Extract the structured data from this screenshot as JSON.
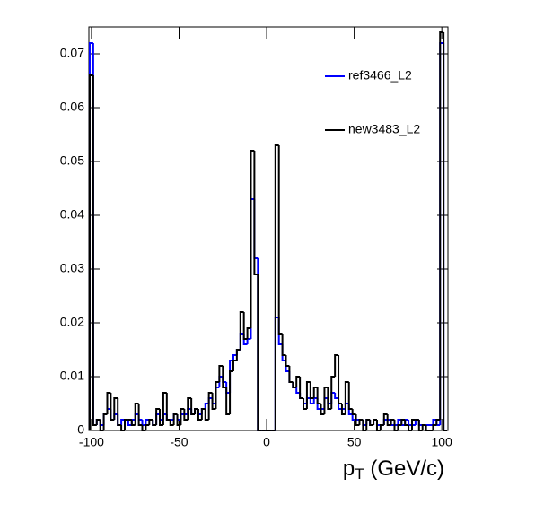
{
  "chart_data": {
    "type": "histogram",
    "x_label": {
      "base": "p",
      "subscript": "T",
      "rest": " (GeV/c)"
    },
    "bins": [
      -101,
      -99,
      -97,
      -95,
      -93,
      -91,
      -89,
      -87,
      -85,
      -83,
      -81,
      -79,
      -77,
      -75,
      -73,
      -71,
      -69,
      -67,
      -65,
      -63,
      -61,
      -59,
      -57,
      -55,
      -53,
      -51,
      -49,
      -47,
      -45,
      -43,
      -41,
      -39,
      -37,
      -35,
      -33,
      -31,
      -29,
      -27,
      -25,
      -23,
      -21,
      -19,
      -17,
      -15,
      -13,
      -11,
      -9,
      -7,
      -5,
      -3,
      -1,
      1,
      3,
      5,
      7,
      9,
      11,
      13,
      15,
      17,
      19,
      21,
      23,
      25,
      27,
      29,
      31,
      33,
      35,
      37,
      39,
      41,
      43,
      45,
      47,
      49,
      51,
      53,
      55,
      57,
      59,
      61,
      63,
      65,
      67,
      69,
      71,
      73,
      75,
      77,
      79,
      81,
      83,
      85,
      87,
      89,
      91,
      93,
      95,
      97,
      99,
      101,
      103
    ],
    "series": [
      {
        "name": "ref3466_L2",
        "color": "#0000ff",
        "values": [
          0.072,
          0.001,
          0.002,
          0.001,
          0.003,
          0.004,
          0.002,
          0.003,
          0.001,
          0.002,
          0.002,
          0.001,
          0.002,
          0.003,
          0.002,
          0.001,
          0.002,
          0.002,
          0.001,
          0.003,
          0.002,
          0.003,
          0.002,
          0.002,
          0.003,
          0.002,
          0.003,
          0.003,
          0.004,
          0.003,
          0.004,
          0.003,
          0.004,
          0.005,
          0.006,
          0.005,
          0.008,
          0.01,
          0.009,
          0.007,
          0.013,
          0.014,
          0.015,
          0.018,
          0.016,
          0.017,
          0.043,
          0.032,
          0,
          0,
          0,
          0,
          0,
          0.021,
          0.016,
          0.013,
          0.011,
          0.009,
          0.008,
          0.007,
          0.006,
          0.005,
          0.006,
          0.005,
          0.006,
          0.004,
          0.004,
          0.006,
          0.005,
          0.007,
          0.006,
          0.004,
          0.004,
          0.005,
          0.003,
          0.002,
          0.002,
          0.002,
          0.001,
          0.002,
          0.001,
          0.002,
          0.001,
          0.001,
          0.002,
          0.002,
          0.001,
          0.001,
          0.002,
          0.001,
          0.002,
          0.001,
          0.001,
          0.002,
          0.001,
          0.001,
          0.001,
          0.001,
          0.002,
          0.001,
          0.072,
          0
        ]
      },
      {
        "name": "new3483_L2",
        "color": "#000000",
        "values": [
          0.066,
          0.001,
          0.002,
          0,
          0.003,
          0.007,
          0.002,
          0.006,
          0.001,
          0,
          0.002,
          0.002,
          0.001,
          0.005,
          0.001,
          0,
          0.001,
          0.002,
          0.001,
          0.004,
          0.001,
          0.007,
          0.002,
          0.001,
          0.003,
          0.001,
          0.004,
          0.002,
          0.006,
          0.003,
          0.004,
          0.002,
          0.004,
          0.002,
          0.007,
          0.004,
          0.009,
          0.012,
          0.008,
          0.003,
          0.011,
          0.013,
          0.015,
          0.022,
          0.017,
          0.019,
          0.052,
          0.029,
          0,
          0,
          0,
          0,
          0,
          0.053,
          0.018,
          0.014,
          0.012,
          0.009,
          0.008,
          0.01,
          0.006,
          0.004,
          0.009,
          0.006,
          0.008,
          0.005,
          0.003,
          0.008,
          0.004,
          0.01,
          0.014,
          0.005,
          0.003,
          0.009,
          0.004,
          0.003,
          0.001,
          0.002,
          0,
          0.002,
          0.001,
          0.002,
          0,
          0.001,
          0.003,
          0.001,
          0.002,
          0,
          0.001,
          0.002,
          0.001,
          0,
          0.002,
          0.002,
          0,
          0.001,
          0,
          0,
          0.001,
          0.002,
          0.074,
          0
        ]
      }
    ],
    "xlim": [
      -101.5,
      103.5
    ],
    "ylim": [
      0,
      0.075
    ],
    "xticks": [
      -100,
      -50,
      0,
      50,
      100
    ],
    "yticks": [
      0,
      0.01,
      0.02,
      0.03,
      0.04,
      0.05,
      0.06,
      0.07
    ],
    "legend": "top-right"
  }
}
